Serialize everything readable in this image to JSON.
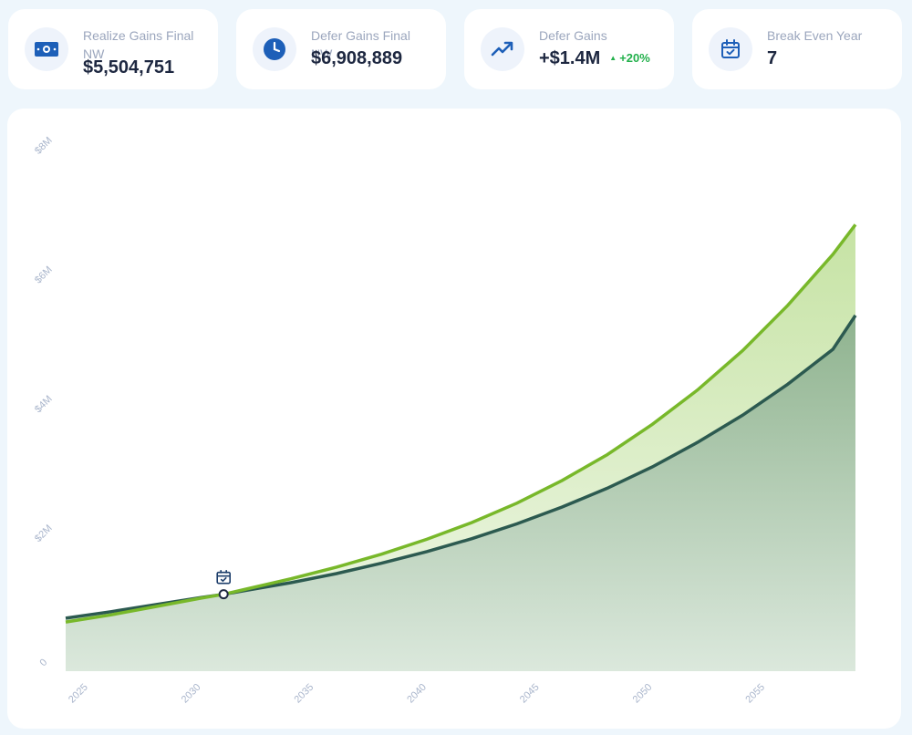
{
  "stats": [
    {
      "label": "Realize Gains Final NW",
      "value": "$5,504,751",
      "icon": "banknote-icon"
    },
    {
      "label": "Defer Gains Final NW",
      "value": "$6,908,889",
      "icon": "clock-icon"
    },
    {
      "label": "Defer Gains",
      "value": "+$1.4M",
      "delta": "+20%",
      "icon": "trending-up-icon"
    },
    {
      "label": "Break Even Year",
      "value": "7",
      "icon": "calendar-check-icon"
    }
  ],
  "colors": {
    "accent": "#1d5fb8",
    "positive": "#22b04b",
    "realize_line": "#3f6f63",
    "defer_line": "#78b82a",
    "realize_fill": "#8fb38f",
    "defer_fill": "#c6e3a4"
  },
  "chart_data": {
    "type": "area",
    "y_ticks": [
      "0",
      "$2M",
      "$4M",
      "$6M",
      "$8M"
    ],
    "x_ticks": [
      "2025",
      "2030",
      "2035",
      "2040",
      "2045",
      "2050",
      "2055"
    ],
    "ylim": [
      0,
      8000000
    ],
    "xlim": [
      2024,
      2059
    ],
    "grid": false,
    "break_even_year": 2031,
    "series": [
      {
        "key": "realize",
        "years": [
          2024,
          2026,
          2028,
          2030,
          2031,
          2032,
          2034,
          2036,
          2038,
          2040,
          2042,
          2044,
          2046,
          2048,
          2050,
          2052,
          2054,
          2056,
          2058,
          2059
        ],
        "values": [
          820000,
          920000,
          1030000,
          1140000,
          1190000,
          1250000,
          1370000,
          1510000,
          1670000,
          1850000,
          2050000,
          2280000,
          2540000,
          2830000,
          3160000,
          3540000,
          3960000,
          4440000,
          4980000,
          5504751
        ]
      },
      {
        "key": "defer",
        "years": [
          2024,
          2026,
          2028,
          2030,
          2031,
          2032,
          2034,
          2036,
          2038,
          2040,
          2042,
          2044,
          2046,
          2048,
          2050,
          2052,
          2054,
          2056,
          2058,
          2059
        ],
        "values": [
          760000,
          870000,
          1000000,
          1130000,
          1190000,
          1270000,
          1430000,
          1610000,
          1810000,
          2040000,
          2300000,
          2600000,
          2950000,
          3350000,
          3820000,
          4350000,
          4960000,
          5660000,
          6450000,
          6908889
        ]
      }
    ]
  }
}
